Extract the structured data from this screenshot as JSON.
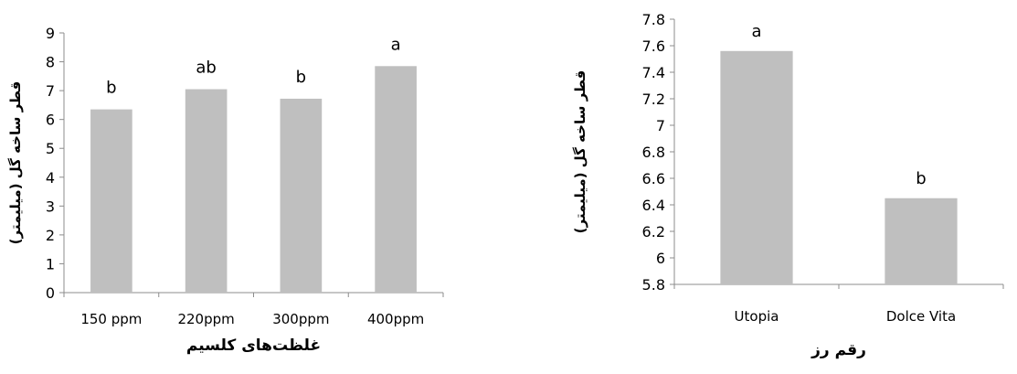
{
  "chart_data": [
    {
      "type": "bar",
      "categories": [
        "150 ppm",
        "220ppm",
        "300ppm",
        "400ppm"
      ],
      "values": [
        6.35,
        7.05,
        6.72,
        7.85
      ],
      "data_labels": [
        "b",
        "ab",
        "b",
        "a"
      ],
      "title": "",
      "xlabel": "غلظت‌های کلسیم",
      "ylabel": "قطر ساخه گل (میلیمتر)",
      "ylim": [
        0,
        9
      ],
      "yticks": [
        0,
        1,
        2,
        3,
        4,
        5,
        6,
        7,
        8,
        9
      ],
      "ytick_labels": [
        "0",
        "1",
        "2",
        "3",
        "4",
        "5",
        "6",
        "7",
        "8",
        "9"
      ],
      "bar_color": "#bfbfbf",
      "grid": false,
      "legend": false
    },
    {
      "type": "bar",
      "categories": [
        "Utopia",
        "Dolce Vita"
      ],
      "values": [
        7.56,
        6.45
      ],
      "data_labels": [
        "a",
        "b"
      ],
      "title": "",
      "xlabel": "رقم رز",
      "ylabel": "قطر ساخه گل (میلیمتر)",
      "ylim": [
        5.8,
        7.8
      ],
      "yticks": [
        5.8,
        6.0,
        6.2,
        6.4,
        6.6,
        6.8,
        7.0,
        7.2,
        7.4,
        7.6,
        7.8
      ],
      "ytick_labels": [
        "5.8",
        "6",
        "6.2",
        "6.4",
        "6.6",
        "6.8",
        "7",
        "7.2",
        "7.4",
        "7.6",
        "7.8"
      ],
      "bar_color": "#bfbfbf",
      "grid": false,
      "legend": false
    }
  ]
}
